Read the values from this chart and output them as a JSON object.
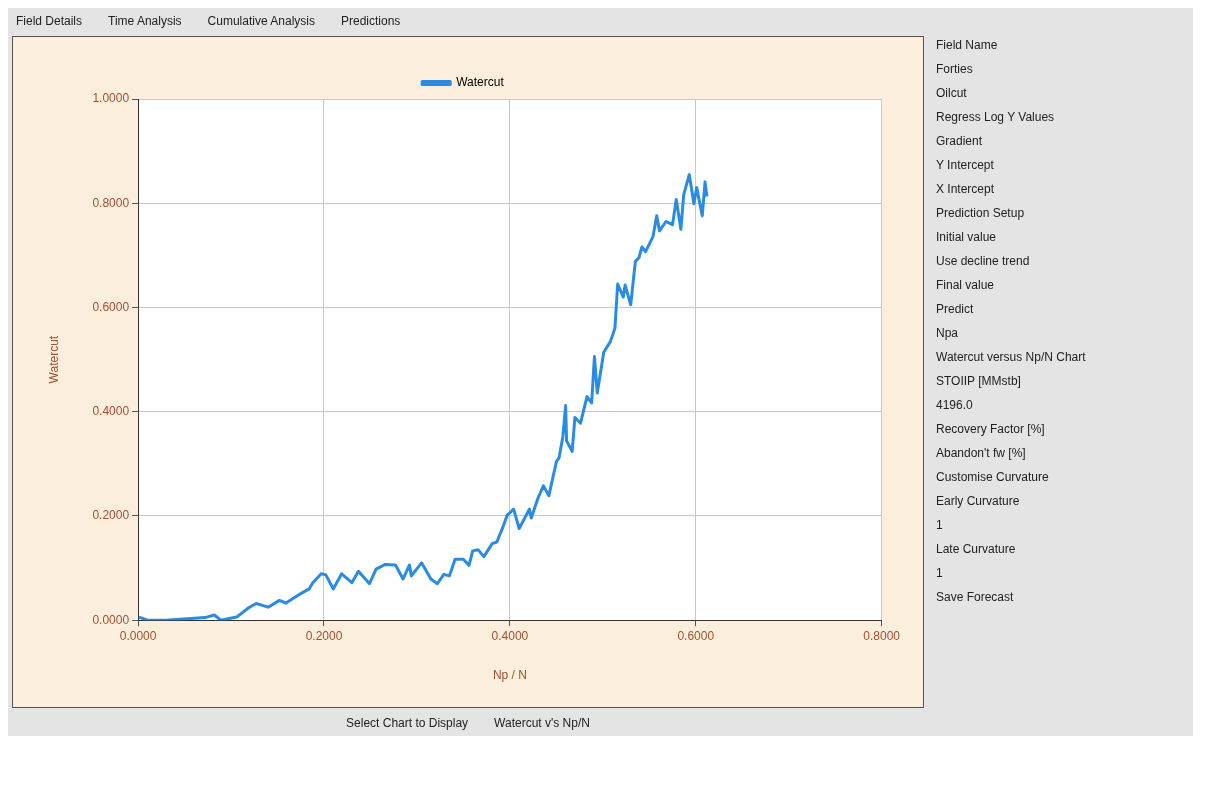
{
  "chart_data": [
    {
      "type": "other",
      "annotations": [
        "Field Details",
        "Time Analysis",
        "Cumulative Analysis",
        "Predictions"
      ]
    },
    {
      "type": "line",
      "xlabel": "Np / N",
      "ylabel": "Watercut",
      "xlim": [
        0,
        0.8
      ],
      "ylim": [
        0,
        1
      ],
      "xticks": [
        {
          "value": 0,
          "label": "0.0000"
        },
        {
          "value": 0.2,
          "label": "0.2000"
        },
        {
          "value": 0.4,
          "label": "0.4000"
        },
        {
          "value": 0.6,
          "label": "0.6000"
        },
        {
          "value": 0.8,
          "label": "0.8000"
        }
      ],
      "yticks": [
        {
          "value": 0,
          "label": "0.0000"
        },
        {
          "value": 0.2,
          "label": "0.2000"
        },
        {
          "value": 0.4,
          "label": "0.4000"
        },
        {
          "value": 0.6,
          "label": "0.6000"
        },
        {
          "value": 0.8,
          "label": "0.8000"
        },
        {
          "value": 1,
          "label": "1.0000"
        }
      ],
      "grid": true,
      "legend": "top",
      "marker": "none",
      "line_style": "solid",
      "series": [
        {
          "name": "Watercut",
          "color": "#2b8be0",
          "x": [
            0.001,
            0.01,
            0.03,
            0.072,
            0.082,
            0.089,
            0.106,
            0.119,
            0.127,
            0.14,
            0.152,
            0.159,
            0.176,
            0.184,
            0.188,
            0.197,
            0.202,
            0.21,
            0.219,
            0.23,
            0.237,
            0.249,
            0.256,
            0.266,
            0.277,
            0.285,
            0.292,
            0.294,
            0.305,
            0.315,
            0.322,
            0.329,
            0.335,
            0.341,
            0.35,
            0.356,
            0.36,
            0.366,
            0.372,
            0.381,
            0.386,
            0.393,
            0.397,
            0.404,
            0.41,
            0.421,
            0.423,
            0.43,
            0.436,
            0.442,
            0.45,
            0.453,
            0.457,
            0.46,
            0.461,
            0.467,
            0.47,
            0.476,
            0.483,
            0.488,
            0.491,
            0.494,
            0.501,
            0.508,
            0.513,
            0.516,
            0.522,
            0.524,
            0.53,
            0.535,
            0.539,
            0.542,
            0.546,
            0.554,
            0.558,
            0.561,
            0.568,
            0.575,
            0.579,
            0.584,
            0.587,
            0.593,
            0.598,
            0.601,
            0.607,
            0.61,
            0.612
          ],
          "values": [
            0.006,
            0.0,
            0.0,
            0.005,
            0.01,
            0.0,
            0.006,
            0.024,
            0.032,
            0.025,
            0.038,
            0.033,
            0.052,
            0.06,
            0.072,
            0.089,
            0.087,
            0.06,
            0.089,
            0.072,
            0.094,
            0.07,
            0.098,
            0.107,
            0.106,
            0.079,
            0.106,
            0.085,
            0.11,
            0.079,
            0.07,
            0.088,
            0.085,
            0.117,
            0.117,
            0.105,
            0.133,
            0.135,
            0.122,
            0.147,
            0.15,
            0.181,
            0.201,
            0.213,
            0.176,
            0.213,
            0.196,
            0.233,
            0.258,
            0.239,
            0.304,
            0.312,
            0.352,
            0.412,
            0.344,
            0.324,
            0.389,
            0.378,
            0.429,
            0.417,
            0.506,
            0.436,
            0.514,
            0.534,
            0.56,
            0.645,
            0.62,
            0.643,
            0.605,
            0.688,
            0.696,
            0.716,
            0.707,
            0.736,
            0.776,
            0.747,
            0.765,
            0.759,
            0.807,
            0.75,
            0.816,
            0.855,
            0.799,
            0.83,
            0.776,
            0.841,
            0.813
          ]
        }
      ]
    },
    {
      "type": "other",
      "annotations": [
        "Field Name",
        "Forties",
        "Oilcut",
        "Regress Log Y Values",
        "Gradient",
        "Y Intercept",
        "X Intercept",
        "Prediction Setup",
        "Initial value",
        "Use decline trend",
        "Final value",
        "Predict",
        "Npa",
        "Watercut versus Np/N Chart",
        "STOIIP [MMstb]",
        "4196.0",
        "Recovery Factor [%]",
        "Abandon't fw [%]",
        "Customise Curvature",
        "Early Curvature",
        "1",
        "Late Curvature",
        "1",
        "Save Forecast"
      ]
    },
    {
      "type": "other",
      "annotations": [
        "Select Chart to Display",
        "Watercut v's Np/N"
      ]
    }
  ]
}
